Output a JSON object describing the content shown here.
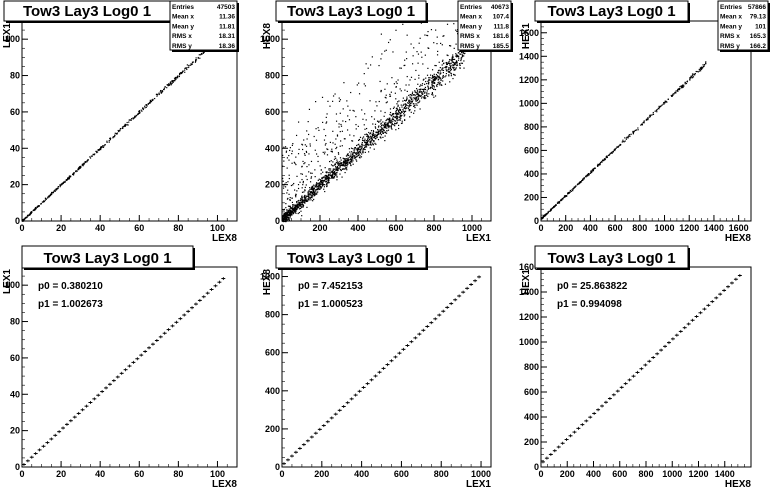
{
  "chart_data": [
    {
      "type": "scatter",
      "title": "Tow3 Lay3 Log0 1",
      "xlabel": "LEX8",
      "ylabel": "LEX1",
      "xlim": [
        0,
        110
      ],
      "ylim": [
        0,
        110
      ],
      "xticks": [
        0,
        20,
        40,
        60,
        80,
        100
      ],
      "yticks": [
        0,
        20,
        40,
        60,
        80,
        100
      ],
      "stats": [
        [
          "Entries",
          "47503"
        ],
        [
          "Mean x",
          "11.36"
        ],
        [
          "Mean y",
          "11.81"
        ],
        [
          "RMS x",
          "18.31"
        ],
        [
          "RMS y",
          "18.36"
        ]
      ],
      "fit": null,
      "trend": {
        "slope": 1.0,
        "intercept": 0.4,
        "xmax": 104,
        "noise": 0.6,
        "outliers": 0,
        "density": 520
      }
    },
    {
      "type": "scatter",
      "title": "Tow3 Lay3 Log0 1",
      "xlabel": "LEX1",
      "ylabel": "HEX8",
      "xlim": [
        0,
        1100
      ],
      "ylim": [
        0,
        1100
      ],
      "xticks": [
        0,
        200,
        400,
        600,
        800,
        1000
      ],
      "yticks": [
        0,
        200,
        400,
        600,
        800,
        1000
      ],
      "stats": [
        [
          "Entries",
          "40673"
        ],
        [
          "Mean x",
          "107.4"
        ],
        [
          "Mean y",
          "111.8"
        ],
        [
          "RMS x",
          "181.6"
        ],
        [
          "RMS y",
          "185.5"
        ]
      ],
      "fit": null,
      "trend": {
        "slope": 0.95,
        "intercept": 10,
        "xmax": 960,
        "noise": 35,
        "outliers": 520,
        "density": 1500
      }
    },
    {
      "type": "scatter",
      "title": "Tow3 Lay3 Log0 1",
      "xlabel": "HEX8",
      "ylabel": "HEX1",
      "xlim": [
        0,
        1700
      ],
      "ylim": [
        0,
        1700
      ],
      "xticks": [
        0,
        200,
        400,
        600,
        800,
        1000,
        1200,
        1400,
        1600
      ],
      "yticks": [
        0,
        200,
        400,
        600,
        800,
        1000,
        1200,
        1400,
        1600
      ],
      "stats": [
        [
          "Entries",
          "57866"
        ],
        [
          "Mean x",
          "79.13"
        ],
        [
          "Mean y",
          "101"
        ],
        [
          "RMS x",
          "165.3"
        ],
        [
          "RMS y",
          "166.2"
        ]
      ],
      "fit": null,
      "trend": {
        "slope": 0.99,
        "intercept": 25,
        "xmax": 1330,
        "noise": 8,
        "outliers": 0,
        "density": 420
      }
    },
    {
      "type": "scatter",
      "title": "Tow3 Lay3 Log0 1",
      "xlabel": "LEX8",
      "ylabel": "LEX1",
      "xlim": [
        0,
        110
      ],
      "ylim": [
        0,
        110
      ],
      "xticks": [
        0,
        20,
        40,
        60,
        80,
        100
      ],
      "yticks": [
        0,
        20,
        40,
        60,
        80,
        100
      ],
      "stats": null,
      "fit": {
        "p0": "0.380210",
        "p1": "1.002673"
      },
      "trend": {
        "slope": 1.002673,
        "intercept": 0.38021,
        "xmax": 104,
        "step": 2,
        "noise": 0,
        "outliers": 0,
        "density": 0
      }
    },
    {
      "type": "scatter",
      "title": "Tow3 Lay3 Log0 1",
      "xlabel": "LEX1",
      "ylabel": "HEX8",
      "xlim": [
        0,
        1050
      ],
      "ylim": [
        0,
        1050
      ],
      "xticks": [
        0,
        200,
        400,
        600,
        800,
        1000
      ],
      "yticks": [
        0,
        200,
        400,
        600,
        800,
        1000
      ],
      "stats": null,
      "fit": {
        "p0": "7.452153",
        "p1": "1.000523"
      },
      "trend": {
        "slope": 1.000523,
        "intercept": 7.452153,
        "xmax": 990,
        "step": 20,
        "noise": 0,
        "outliers": 0,
        "density": 0
      }
    },
    {
      "type": "scatter",
      "title": "Tow3 Lay3 Log0 1",
      "xlabel": "HEX8",
      "ylabel": "HEX1",
      "xlim": [
        0,
        1600
      ],
      "ylim": [
        0,
        1600
      ],
      "xticks": [
        0,
        200,
        400,
        600,
        800,
        1000,
        1200,
        1400
      ],
      "yticks": [
        0,
        200,
        400,
        600,
        800,
        1000,
        1200,
        1400,
        1600
      ],
      "stats": null,
      "fit": {
        "p0": "25.863822",
        "p1": "0.994098"
      },
      "trend": {
        "slope": 0.994098,
        "intercept": 25.863822,
        "xmax": 1520,
        "step": 30,
        "noise": 0,
        "outliers": 0,
        "density": 0
      }
    }
  ]
}
